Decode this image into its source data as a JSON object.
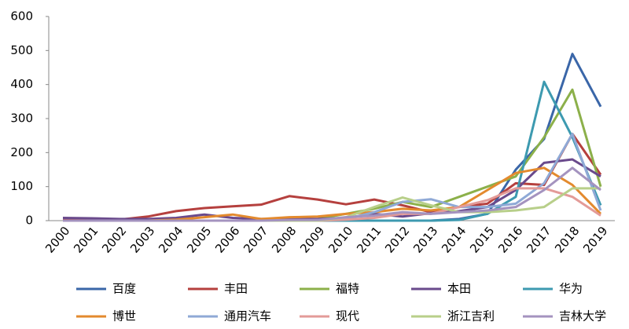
{
  "chart_data": {
    "type": "line",
    "categories": [
      "2000",
      "2001",
      "2002",
      "2003",
      "2004",
      "2005",
      "2006",
      "2007",
      "2008",
      "2009",
      "2010",
      "2011",
      "2012",
      "2013",
      "2014",
      "2015",
      "2016",
      "2017",
      "2018",
      "2019"
    ],
    "ylim": [
      0,
      600
    ],
    "yticks": [
      0,
      100,
      200,
      300,
      400,
      500,
      600
    ],
    "grid": false,
    "series": [
      {
        "name": "百度",
        "color": "#3a66a8",
        "values": [
          0,
          0,
          0,
          0,
          0,
          0,
          0,
          0,
          0,
          0,
          0,
          0,
          0,
          0,
          5,
          20,
          150,
          240,
          490,
          335
        ]
      },
      {
        "name": "丰田",
        "color": "#b5403e",
        "values": [
          5,
          5,
          3,
          12,
          28,
          37,
          42,
          47,
          72,
          62,
          48,
          62,
          45,
          25,
          40,
          50,
          110,
          105,
          255,
          135
        ]
      },
      {
        "name": "福特",
        "color": "#8cb04a",
        "values": [
          0,
          0,
          0,
          0,
          0,
          0,
          0,
          0,
          0,
          5,
          20,
          35,
          55,
          40,
          70,
          100,
          130,
          245,
          385,
          100
        ]
      },
      {
        "name": "本田",
        "color": "#6a4a8c",
        "values": [
          8,
          7,
          5,
          5,
          8,
          18,
          8,
          5,
          5,
          5,
          8,
          20,
          12,
          22,
          28,
          40,
          90,
          170,
          180,
          130
        ]
      },
      {
        "name": "华为",
        "color": "#3d9ab0",
        "values": [
          0,
          0,
          0,
          0,
          0,
          0,
          0,
          0,
          0,
          0,
          0,
          0,
          0,
          0,
          2,
          20,
          70,
          408,
          245,
          45
        ]
      },
      {
        "name": "博世",
        "color": "#e38a2e",
        "values": [
          0,
          0,
          0,
          0,
          3,
          10,
          18,
          5,
          10,
          12,
          20,
          25,
          35,
          30,
          40,
          90,
          140,
          155,
          105,
          20
        ]
      },
      {
        "name": "通用汽车",
        "color": "#8fa9d6",
        "values": [
          0,
          0,
          0,
          0,
          0,
          0,
          0,
          0,
          0,
          0,
          5,
          25,
          55,
          63,
          40,
          40,
          50,
          110,
          255,
          30
        ]
      },
      {
        "name": "现代",
        "color": "#e39b98",
        "values": [
          0,
          0,
          0,
          0,
          0,
          0,
          0,
          0,
          0,
          0,
          3,
          8,
          20,
          20,
          40,
          60,
          95,
          95,
          70,
          15
        ]
      },
      {
        "name": "浙江吉利",
        "color": "#b8cf8a",
        "values": [
          0,
          0,
          0,
          0,
          0,
          0,
          0,
          0,
          0,
          0,
          10,
          40,
          68,
          45,
          25,
          25,
          30,
          40,
          95,
          95
        ]
      },
      {
        "name": "吉林大学",
        "color": "#a493bf",
        "values": [
          0,
          0,
          0,
          0,
          0,
          0,
          0,
          0,
          2,
          2,
          10,
          15,
          25,
          20,
          25,
          30,
          40,
          90,
          155,
          90
        ]
      }
    ]
  }
}
